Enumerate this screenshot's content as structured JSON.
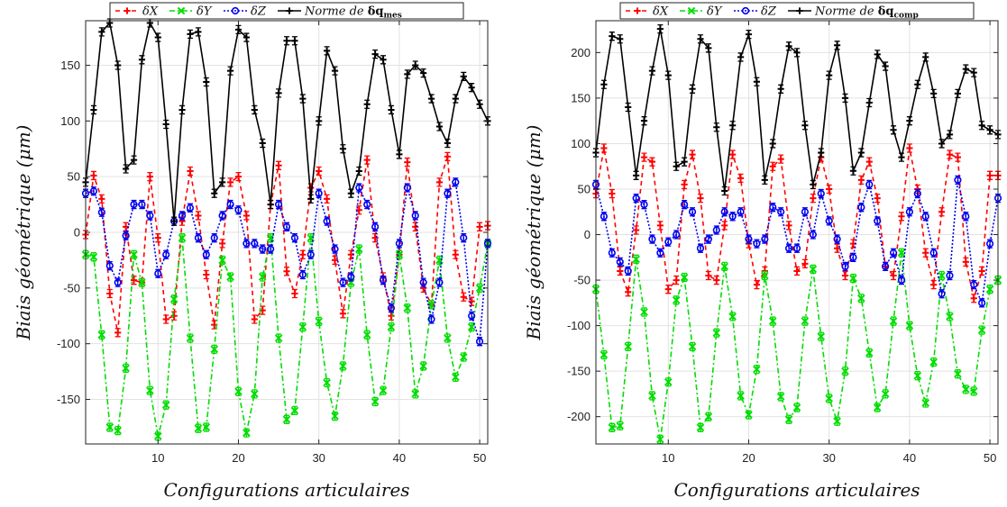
{
  "chart_data": [
    {
      "type": "line",
      "title": "",
      "xlabel": "Configurations articulaires",
      "ylabel": "Biais géométrique (μm)",
      "xlim": [
        1,
        51
      ],
      "ylim": [
        -190,
        190
      ],
      "xticks": [
        10,
        20,
        30,
        40,
        50
      ],
      "yticks": [
        -150,
        -100,
        -50,
        0,
        50,
        100,
        150
      ],
      "grid": true,
      "legend_position": "top",
      "legend_title_part": "Norme de",
      "legend_norm_symbol": "δq",
      "legend_norm_subscript": "mes",
      "x": [
        1,
        2,
        3,
        4,
        5,
        6,
        7,
        8,
        9,
        10,
        11,
        12,
        13,
        14,
        15,
        16,
        17,
        18,
        19,
        20,
        21,
        22,
        23,
        24,
        25,
        26,
        27,
        28,
        29,
        30,
        31,
        32,
        33,
        34,
        35,
        36,
        37,
        38,
        39,
        40,
        41,
        42,
        43,
        44,
        45,
        46,
        47,
        48,
        49,
        50,
        51
      ],
      "series": [
        {
          "name": "δX",
          "color": "#ff0000",
          "dash": "5,4",
          "marker": "plus",
          "values": [
            -2,
            51,
            30,
            -55,
            -90,
            5,
            -43,
            -45,
            50,
            -5,
            -78,
            -75,
            10,
            55,
            15,
            -38,
            -83,
            -10,
            45,
            50,
            15,
            -78,
            -70,
            25,
            60,
            -35,
            -55,
            -20,
            40,
            55,
            30,
            -25,
            -73,
            -20,
            20,
            65,
            -5,
            -40,
            -75,
            -20,
            63,
            5,
            -50,
            -65,
            45,
            68,
            -20,
            -58,
            -62,
            5,
            6
          ]
        },
        {
          "name": "δY",
          "color": "#00dd00",
          "dash": "6,3,2,3",
          "marker": "x",
          "values": [
            -20,
            -22,
            -92,
            -175,
            -178,
            -122,
            -20,
            -45,
            -142,
            -183,
            -155,
            -60,
            -5,
            -95,
            -176,
            -175,
            -105,
            -25,
            -40,
            -143,
            -180,
            -145,
            -40,
            -5,
            -95,
            -168,
            -160,
            -85,
            -5,
            -80,
            -135,
            -165,
            -120,
            -45,
            -15,
            -92,
            -152,
            -142,
            -85,
            -20,
            -68,
            -145,
            -120,
            -65,
            -25,
            -95,
            -130,
            -112,
            -85,
            -50,
            -10
          ]
        },
        {
          "name": "δZ",
          "color": "#0000ee",
          "dash": "2,2",
          "marker": "circle",
          "values": [
            35,
            37,
            18,
            -30,
            -45,
            -3,
            25,
            25,
            15,
            -37,
            -20,
            10,
            15,
            22,
            -5,
            -20,
            -5,
            15,
            25,
            20,
            -10,
            -10,
            -15,
            -15,
            25,
            5,
            -5,
            -38,
            -20,
            35,
            10,
            -15,
            -45,
            -40,
            40,
            25,
            5,
            -43,
            -68,
            -10,
            40,
            15,
            -45,
            -78,
            -45,
            35,
            45,
            -5,
            -75,
            -98,
            -10
          ]
        },
        {
          "name": "Norme",
          "color": "#000000",
          "dash": "",
          "marker": "plus",
          "values": [
            45,
            110,
            180,
            188,
            150,
            57,
            65,
            155,
            188,
            175,
            97,
            10,
            110,
            178,
            180,
            135,
            35,
            45,
            145,
            182,
            175,
            110,
            80,
            25,
            125,
            172,
            172,
            120,
            30,
            100,
            163,
            145,
            75,
            35,
            55,
            115,
            160,
            155,
            110,
            70,
            142,
            150,
            143,
            120,
            95,
            80,
            120,
            140,
            130,
            115,
            100
          ]
        }
      ]
    },
    {
      "type": "line",
      "title": "",
      "xlabel": "Configurations articulaires",
      "ylabel": "Biais géométrique (μm)",
      "xlim": [
        1,
        51
      ],
      "ylim": [
        -230,
        235
      ],
      "xticks": [
        10,
        20,
        30,
        40,
        50
      ],
      "yticks": [
        -200,
        -150,
        -100,
        -50,
        0,
        50,
        100,
        150,
        200
      ],
      "grid": true,
      "legend_position": "top",
      "legend_title_part": "Norme de",
      "legend_norm_symbol": "δq",
      "legend_norm_subscript": "comp",
      "x": [
        1,
        2,
        3,
        4,
        5,
        6,
        7,
        8,
        9,
        10,
        11,
        12,
        13,
        14,
        15,
        16,
        17,
        18,
        19,
        20,
        21,
        22,
        23,
        24,
        25,
        26,
        27,
        28,
        29,
        30,
        31,
        32,
        33,
        34,
        35,
        36,
        37,
        38,
        39,
        40,
        41,
        42,
        43,
        44,
        45,
        46,
        47,
        48,
        49,
        50,
        51
      ],
      "series": [
        {
          "name": "δX",
          "color": "#ff0000",
          "dash": "5,4",
          "marker": "plus",
          "values": [
            45,
            95,
            45,
            -40,
            -63,
            5,
            85,
            80,
            10,
            -60,
            -50,
            55,
            88,
            40,
            -45,
            -50,
            10,
            88,
            62,
            -10,
            -55,
            -40,
            75,
            83,
            10,
            -40,
            -32,
            40,
            85,
            50,
            -15,
            -45,
            -10,
            60,
            80,
            40,
            -35,
            -45,
            20,
            95,
            50,
            -20,
            -55,
            25,
            88,
            85,
            -30,
            -70,
            -40,
            65,
            65
          ]
        },
        {
          "name": "δY",
          "color": "#00dd00",
          "dash": "6,3,2,3",
          "marker": "x",
          "values": [
            -60,
            -132,
            -212,
            -210,
            -123,
            -27,
            -85,
            -177,
            -225,
            -162,
            -72,
            -47,
            -123,
            -212,
            -200,
            -108,
            -35,
            -90,
            -177,
            -198,
            -148,
            -45,
            -95,
            -178,
            -203,
            -190,
            -95,
            -38,
            -112,
            -180,
            -205,
            -150,
            -48,
            -70,
            -130,
            -190,
            -175,
            -95,
            -20,
            -100,
            -155,
            -185,
            -140,
            -45,
            -90,
            -153,
            -170,
            -172,
            -105,
            -60,
            -50
          ]
        },
        {
          "name": "δZ",
          "color": "#0000ee",
          "dash": "2,2",
          "marker": "circle",
          "values": [
            55,
            20,
            -20,
            -30,
            -40,
            40,
            33,
            -5,
            -20,
            -8,
            0,
            33,
            25,
            -15,
            -5,
            5,
            25,
            20,
            25,
            -5,
            -10,
            -5,
            30,
            25,
            -15,
            -15,
            25,
            0,
            45,
            15,
            -5,
            -35,
            -25,
            30,
            55,
            15,
            -35,
            -20,
            -50,
            25,
            45,
            20,
            -20,
            -65,
            -45,
            60,
            20,
            -55,
            -75,
            -10,
            40
          ]
        },
        {
          "name": "Norme",
          "color": "#000000",
          "dash": "",
          "marker": "plus",
          "values": [
            90,
            165,
            218,
            215,
            140,
            65,
            125,
            180,
            226,
            175,
            75,
            80,
            160,
            215,
            205,
            118,
            48,
            120,
            195,
            220,
            168,
            60,
            100,
            160,
            207,
            200,
            120,
            55,
            90,
            175,
            208,
            150,
            70,
            90,
            145,
            198,
            185,
            115,
            85,
            125,
            165,
            195,
            155,
            100,
            110,
            155,
            182,
            178,
            120,
            115,
            110
          ]
        }
      ]
    }
  ]
}
